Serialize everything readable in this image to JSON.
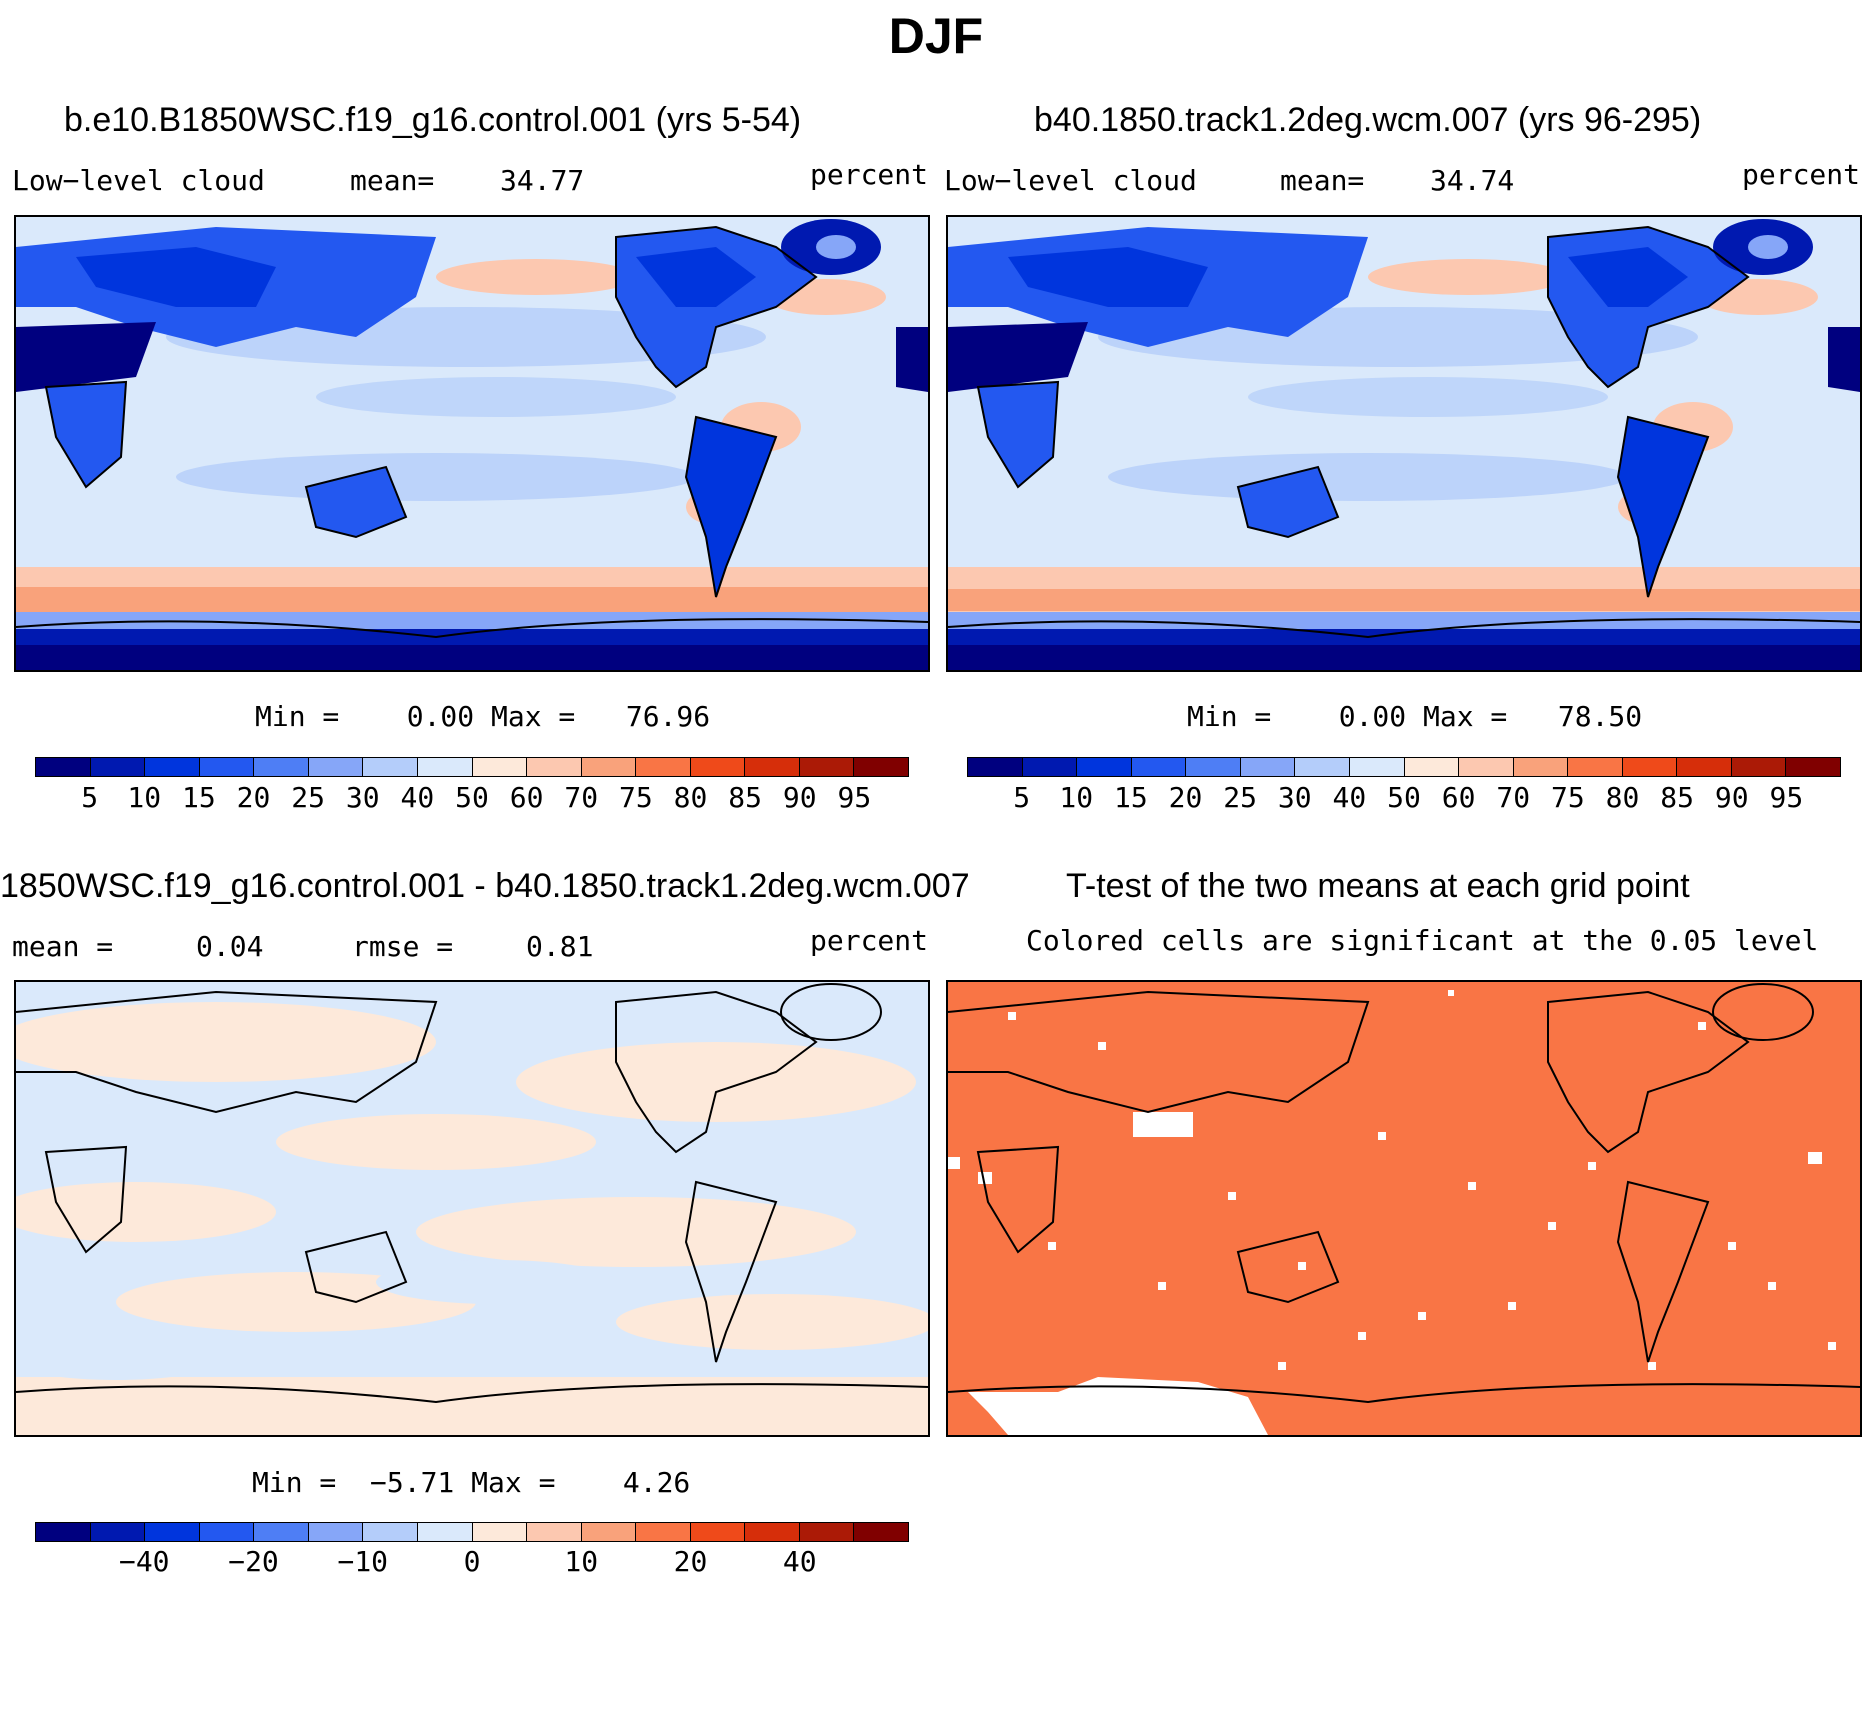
{
  "figure": {
    "title": "DJF"
  },
  "panels": {
    "p1": {
      "title": "b.e10.B1850WSC.f19_g16.control.001 (yrs 5-54)",
      "variable": "Low−level cloud",
      "mean_label": "mean=",
      "mean_value": "34.77",
      "units": "percent",
      "minmax": "Min =    0.00 Max =   76.96"
    },
    "p2": {
      "title": "b40.1850.track1.2deg.wcm.007 (yrs 96-295)",
      "variable": "Low−level cloud",
      "mean_label": "mean=",
      "mean_value": "34.74",
      "units": "percent",
      "minmax": "Min =    0.00 Max =   78.50"
    },
    "p3": {
      "title": "1850WSC.f19_g16.control.001 - b40.1850.track1.2deg.wcm.007",
      "mean_label": "mean =",
      "mean_value": "0.04",
      "rmse_label": "rmse =",
      "rmse_value": "0.81",
      "units": "percent",
      "minmax": "Min =  −5.71 Max =    4.26"
    },
    "p4": {
      "title": "T-test of the two means at each grid point",
      "subtitle": "Colored cells are significant at the 0.05 level"
    }
  },
  "colorbars": {
    "colors": [
      "#00007f",
      "#0019b0",
      "#0035dd",
      "#2358f0",
      "#4e7ef5",
      "#86a6f8",
      "#b4cdfa",
      "#dae9fb",
      "#fde9da",
      "#fcc8b0",
      "#f9a27b",
      "#f97545",
      "#ef4a1a",
      "#d62e0a",
      "#ab1a06",
      "#800000"
    ],
    "abs_ticks": [
      "5",
      "10",
      "15",
      "20",
      "25",
      "30",
      "40",
      "50",
      "60",
      "70",
      "75",
      "80",
      "85",
      "90",
      "95"
    ],
    "diff_ticks": [
      "−40",
      "",
      "−20",
      "",
      "−10",
      "",
      "0",
      "",
      "10",
      "",
      "20",
      "",
      "40"
    ],
    "diff_tick_positions": [
      2,
      3,
      4,
      5,
      6,
      7,
      8,
      9,
      10,
      11,
      12,
      13,
      14
    ]
  },
  "map_colors": {
    "ocean_base": "#dae9fb",
    "diff_blue": "#dae9fb",
    "diff_peach": "#fde9da",
    "ttest_fill": "#f97545"
  }
}
